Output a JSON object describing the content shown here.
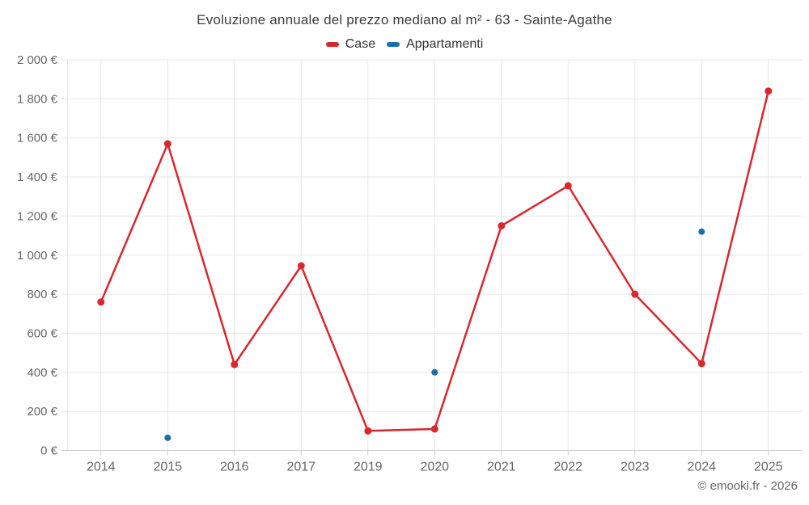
{
  "page": {
    "footer": "© emooki.fr - 2026"
  },
  "colors": {
    "grid": "#e7e7e7",
    "axis": "#cccccc",
    "tick_label": "#666666",
    "title": "#3c3c3c",
    "case_red": "#d8282e",
    "apartment_blue": "#1b6fa8"
  },
  "chart_data": {
    "type": "line",
    "title": "Evoluzione annuale del prezzo mediano al m² - 63 - Sainte-Agathe",
    "categories": [
      "2014",
      "2015",
      "2016",
      "2017",
      "2019",
      "2020",
      "2021",
      "2022",
      "2023",
      "2024",
      "2025"
    ],
    "series": [
      {
        "name": "Case",
        "type": "line",
        "color": "#d8282e",
        "marker_radius": 4.5,
        "values": [
          760,
          1570,
          440,
          945,
          100,
          110,
          1150,
          1355,
          800,
          445,
          1840
        ]
      },
      {
        "name": "Appartamenti",
        "type": "scatter",
        "color": "#1b6fa8",
        "marker_radius": 4,
        "values": [
          null,
          65,
          null,
          null,
          null,
          400,
          null,
          null,
          null,
          1120,
          null
        ]
      }
    ],
    "ylim": [
      0,
      2000
    ],
    "ytick_interval": 200,
    "ytick_labels": [
      "0 €",
      "200 €",
      "400 €",
      "600 €",
      "800 €",
      "1 000 €",
      "1 200 €",
      "1 400 €",
      "1 600 €",
      "1 800 €",
      "2 000 €"
    ],
    "ylabel_suffix": "€",
    "grid": true,
    "legend_position": "top"
  }
}
